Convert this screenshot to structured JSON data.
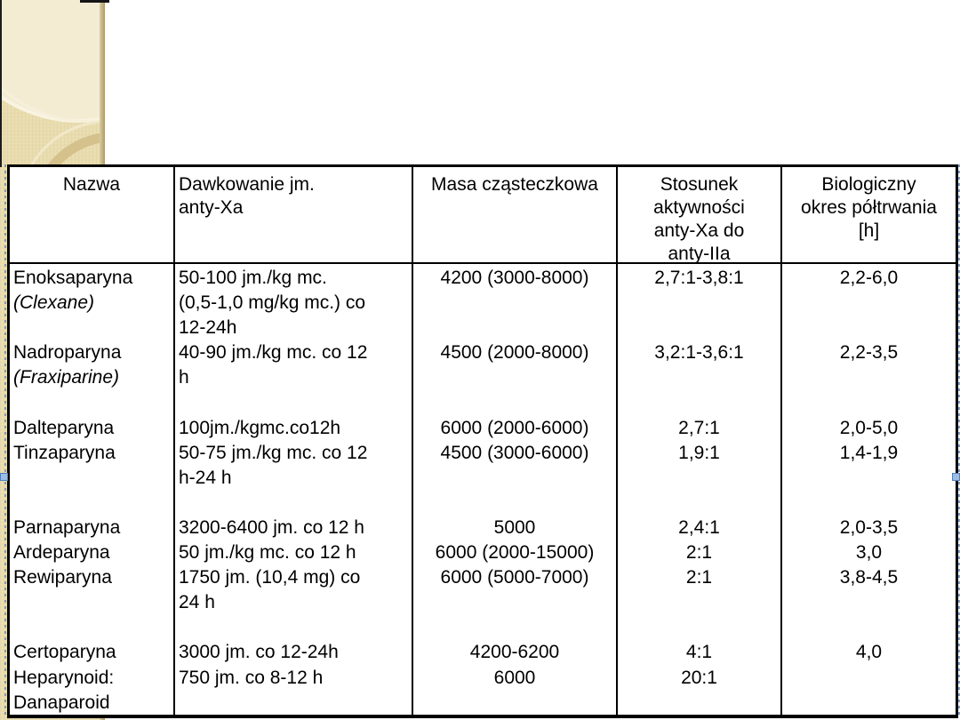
{
  "slide": {
    "background": "#ffffff"
  },
  "decor": {
    "band_color": "#e9dcae",
    "band_light_circle": "#f3ecd3",
    "band_ring": "#d5c18c",
    "band_edge": "#ab9a70"
  },
  "selection": {
    "dash_color": "#7a9cc8",
    "handle_fill": "#9dbde4",
    "handle_border": "#4f81bd"
  },
  "table": {
    "border_color": "#000000",
    "header": {
      "cells": [
        {
          "name": "nazwa",
          "align": "center",
          "lines": [
            "Nazwa"
          ]
        },
        {
          "name": "dawkowanie",
          "align": "left",
          "lines": [
            "Dawkowanie jm.",
            "anty-Xa"
          ]
        },
        {
          "name": "masa",
          "align": "center",
          "lines": [
            "Masa cząsteczkowa"
          ]
        },
        {
          "name": "stosunek",
          "align": "center",
          "lines": [
            "Stosunek",
            "aktywności",
            "anty-Xa do",
            "anty-IIa"
          ]
        },
        {
          "name": "biologiczny",
          "align": "center",
          "lines": [
            "Biologiczny",
            "okres półtrwania",
            "[h]"
          ]
        }
      ]
    },
    "body": {
      "columns": [
        {
          "name": "nazwa",
          "align": "left",
          "lines": [
            "Enoksaparyna",
            {
              "t": "(Clexane)",
              "i": true
            },
            "",
            "Nadroparyna",
            {
              "t": "(Fraxiparine)",
              "i": true
            },
            "",
            "Dalteparyna",
            "Tinzaparyna",
            "",
            "",
            "Parnaparyna",
            "Ardeparyna",
            "Rewiparyna",
            "",
            "",
            "Certoparyna",
            "Heparynoid:",
            "Danaparoid"
          ]
        },
        {
          "name": "dawkowanie",
          "align": "left",
          "lines": [
            "50-100 jm./kg mc.",
            "(0,5-1,0 mg/kg mc.) co",
            "12-24h",
            "40-90 jm./kg mc. co 12",
            "h",
            "",
            "100jm./kgmc.co12h",
            "50-75 jm./kg mc. co 12",
            "h-24 h",
            "",
            "3200-6400 jm. co 12 h",
            "50 jm./kg mc. co 12 h",
            "1750 jm. (10,4 mg) co",
            "24 h",
            "",
            "3000 jm. co 12-24h",
            "750 jm. co 8-12 h",
            ""
          ]
        },
        {
          "name": "masa",
          "align": "center",
          "lines": [
            "4200 (3000-8000)",
            "",
            "",
            "4500 (2000-8000)",
            "",
            "",
            "6000 (2000-6000)",
            "4500 (3000-6000)",
            "",
            "",
            "5000",
            "6000 (2000-15000)",
            "6000 (5000-7000)",
            "",
            "",
            "4200-6200",
            "6000",
            ""
          ]
        },
        {
          "name": "stosunek",
          "align": "center",
          "lines": [
            "2,7:1-3,8:1",
            "",
            "",
            "3,2:1-3,6:1",
            "",
            "",
            "2,7:1",
            "1,9:1",
            "",
            "",
            "2,4:1",
            "2:1",
            "2:1",
            "",
            "",
            "4:1",
            "20:1",
            ""
          ]
        },
        {
          "name": "biologiczny",
          "align": "center",
          "lines": [
            "2,2-6,0",
            "",
            "",
            "2,2-3,5",
            "",
            "",
            "2,0-5,0",
            "1,4-1,9",
            "",
            "",
            "2,0-3,5",
            "3,0",
            "3,8-4,5",
            "",
            "",
            "4,0",
            "",
            ""
          ]
        }
      ]
    }
  }
}
